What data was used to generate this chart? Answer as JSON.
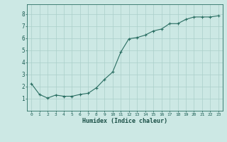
{
  "x": [
    0,
    1,
    2,
    3,
    4,
    5,
    6,
    7,
    8,
    9,
    10,
    11,
    12,
    13,
    14,
    15,
    16,
    17,
    18,
    19,
    20,
    21,
    22,
    23
  ],
  "y": [
    2.25,
    1.35,
    1.05,
    1.3,
    1.2,
    1.2,
    1.35,
    1.45,
    1.9,
    2.6,
    3.2,
    4.85,
    5.95,
    6.05,
    6.25,
    6.6,
    6.75,
    7.2,
    7.2,
    7.55,
    7.75,
    7.75,
    7.75,
    7.85
  ],
  "xlabel": "Humidex (Indice chaleur)",
  "xlim": [
    -0.5,
    23.5
  ],
  "ylim": [
    0,
    8.8
  ],
  "yticks": [
    1,
    2,
    3,
    4,
    5,
    6,
    7,
    8
  ],
  "xticks": [
    0,
    1,
    2,
    3,
    4,
    5,
    6,
    7,
    8,
    9,
    10,
    11,
    12,
    13,
    14,
    15,
    16,
    17,
    18,
    19,
    20,
    21,
    22,
    23
  ],
  "line_color": "#2a6e62",
  "marker_color": "#2a6e62",
  "bg_color": "#cce8e4",
  "grid_color": "#aacfc9",
  "tick_label_color": "#1a5c52",
  "xlabel_color": "#1a4f46"
}
